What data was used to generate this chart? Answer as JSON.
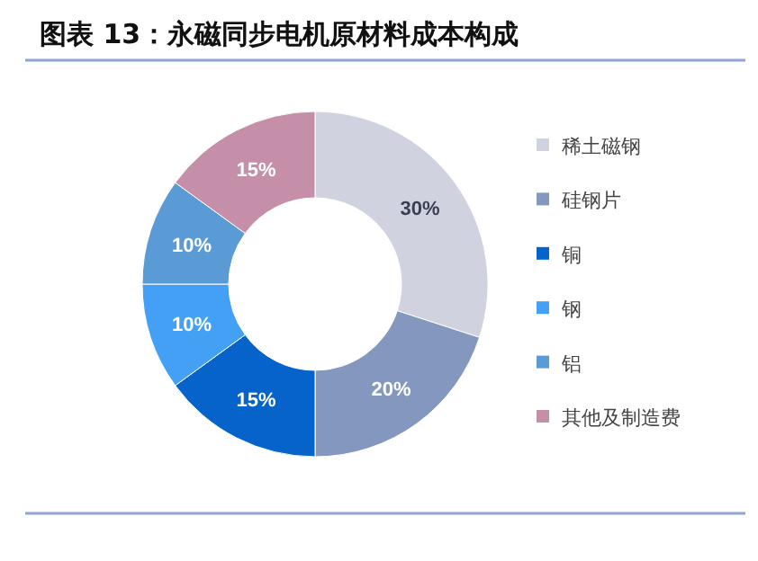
{
  "chart_data": {
    "type": "donut",
    "title": "图表 13：永磁同步电机原材料成本构成",
    "categories": [
      "稀土磁钢",
      "硅钢片",
      "铜",
      "钢",
      "铝",
      "其他及制造费"
    ],
    "values": [
      30,
      20,
      15,
      10,
      10,
      15
    ],
    "colors": [
      "#d0d3df",
      "#8497bf",
      "#0563c9",
      "#44a0f5",
      "#5b9bd5",
      "#c58fa9"
    ],
    "value_labels": [
      "30%",
      "20%",
      "15%",
      "10%",
      "10%",
      "15%"
    ],
    "legend": "right"
  }
}
